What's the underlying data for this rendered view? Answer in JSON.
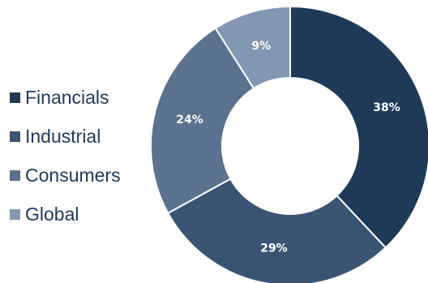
{
  "chart_data": {
    "type": "pie",
    "variant": "donut",
    "categories": [
      "Financials",
      "Industrial",
      "Consumers",
      "Global"
    ],
    "values": [
      38,
      29,
      24,
      9
    ],
    "value_labels": [
      "38%",
      "29%",
      "24%",
      "9%"
    ],
    "colors": [
      "#1f3a58",
      "#3a5574",
      "#5b7190",
      "#8197b4"
    ],
    "legend_position": "left",
    "start_angle": "top",
    "direction": "clockwise"
  }
}
